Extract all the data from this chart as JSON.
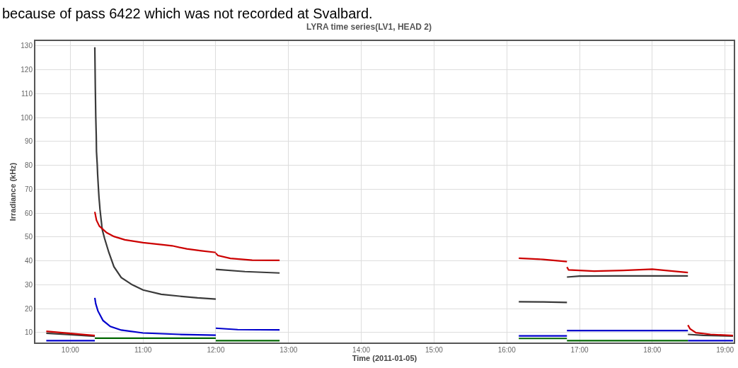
{
  "chart_data": {
    "type": "line",
    "title": "LYRA time series(LV1, HEAD 2)",
    "xlabel": "Time (2011-01-05)",
    "ylabel": "Irradiance (kHz)",
    "annotations": [
      "because of pass 6422 which was not recorded at Svalbard."
    ],
    "xlim": [
      9.52,
      19.12
    ],
    "ylim": [
      5.8,
      132
    ],
    "xticks": [
      {
        "value": 10,
        "label": "10:00"
      },
      {
        "value": 11,
        "label": "11:00"
      },
      {
        "value": 12,
        "label": "12:00"
      },
      {
        "value": 13,
        "label": "13:00"
      },
      {
        "value": 14,
        "label": "14:00"
      },
      {
        "value": 15,
        "label": "15:00"
      },
      {
        "value": 16,
        "label": "16:00"
      },
      {
        "value": 17,
        "label": "17:00"
      },
      {
        "value": 18,
        "label": "18:00"
      },
      {
        "value": 19,
        "label": "19:00"
      }
    ],
    "yticks": [
      10,
      20,
      30,
      40,
      50,
      60,
      70,
      80,
      90,
      100,
      110,
      120,
      130
    ],
    "grid": true,
    "marker": "none",
    "line_style": "solid",
    "series": [
      {
        "color": "#3a3a3a",
        "x": [
          9.67,
          10.0,
          10.337,
          null,
          10.337,
          10.344,
          10.35,
          10.357,
          10.36,
          10.37,
          10.376,
          10.383,
          10.389,
          10.395,
          10.402,
          10.408,
          10.415,
          10.421,
          10.428,
          10.434,
          10.44,
          10.47,
          10.53,
          10.6,
          10.7,
          10.85,
          11.0,
          11.25,
          11.5,
          11.75,
          12.0,
          null,
          12.0,
          12.4,
          12.877,
          null,
          16.165,
          16.5,
          16.827,
          null,
          16.827,
          17.0,
          17.5,
          18.0,
          18.49,
          null,
          18.49,
          18.7,
          19.11
        ],
        "values": [
          9.7,
          9.1,
          8.4,
          null,
          129.4,
          112,
          100.5,
          92.1,
          85.7,
          80.5,
          76.1,
          72.3,
          69.2,
          66.3,
          63.9,
          61.6,
          59.6,
          57.9,
          56.1,
          54.4,
          53,
          49.5,
          43.5,
          37.5,
          33,
          30,
          27.8,
          26,
          25.2,
          24.5,
          24,
          null,
          36.4,
          35.5,
          34.9,
          null,
          22.9,
          22.8,
          22.6,
          null,
          33.2,
          33.6,
          33.7,
          33.7,
          33.7,
          null,
          9.2,
          8.8,
          8.5
        ]
      },
      {
        "color": "#cc0000",
        "x": [
          9.67,
          10.0,
          10.337,
          null,
          10.337,
          10.36,
          10.4,
          10.5,
          10.6,
          10.75,
          11.0,
          11.25,
          11.4,
          11.6,
          11.8,
          12.0,
          null,
          12.0,
          12.03,
          12.2,
          12.5,
          12.877,
          null,
          16.165,
          16.5,
          16.827,
          null,
          16.827,
          16.85,
          17.2,
          17.6,
          18.0,
          18.49,
          null,
          18.49,
          18.52,
          18.6,
          18.8,
          19.11
        ],
        "values": [
          10.5,
          9.6,
          8.7,
          null,
          60.5,
          57,
          54.5,
          51.8,
          50.2,
          48.8,
          47.6,
          46.8,
          46.3,
          45,
          44.2,
          43.5,
          null,
          43.2,
          42.2,
          41,
          40.3,
          40.2,
          null,
          41.1,
          40.6,
          39.7,
          null,
          37.4,
          36.2,
          35.7,
          36,
          36.5,
          35.1,
          null,
          13.1,
          11.5,
          9.9,
          9.2,
          8.7
        ]
      },
      {
        "color": "#0000cc",
        "x": [
          9.67,
          10.337,
          null,
          10.337,
          10.35,
          10.38,
          10.45,
          10.55,
          10.7,
          11.0,
          11.5,
          12.0,
          null,
          12.0,
          12.3,
          12.877,
          null,
          16.165,
          16.827,
          null,
          16.827,
          18.49,
          null,
          18.49,
          19.11
        ],
        "values": [
          6.6,
          6.6,
          null,
          24.5,
          22,
          19,
          15,
          12.5,
          11,
          9.8,
          9.2,
          8.9,
          null,
          11.8,
          11.2,
          11.1,
          null,
          8.6,
          8.6,
          null,
          10.8,
          10.8,
          null,
          6.6,
          6.6
        ]
      },
      {
        "color": "#006600",
        "x": [
          10.337,
          12.0,
          null,
          12.0,
          12.877,
          null,
          16.165,
          16.827,
          null,
          16.827,
          18.49
        ],
        "values": [
          7.6,
          7.6,
          null,
          6.6,
          6.6,
          null,
          7.5,
          7.5,
          null,
          6.6,
          6.6
        ]
      }
    ]
  }
}
